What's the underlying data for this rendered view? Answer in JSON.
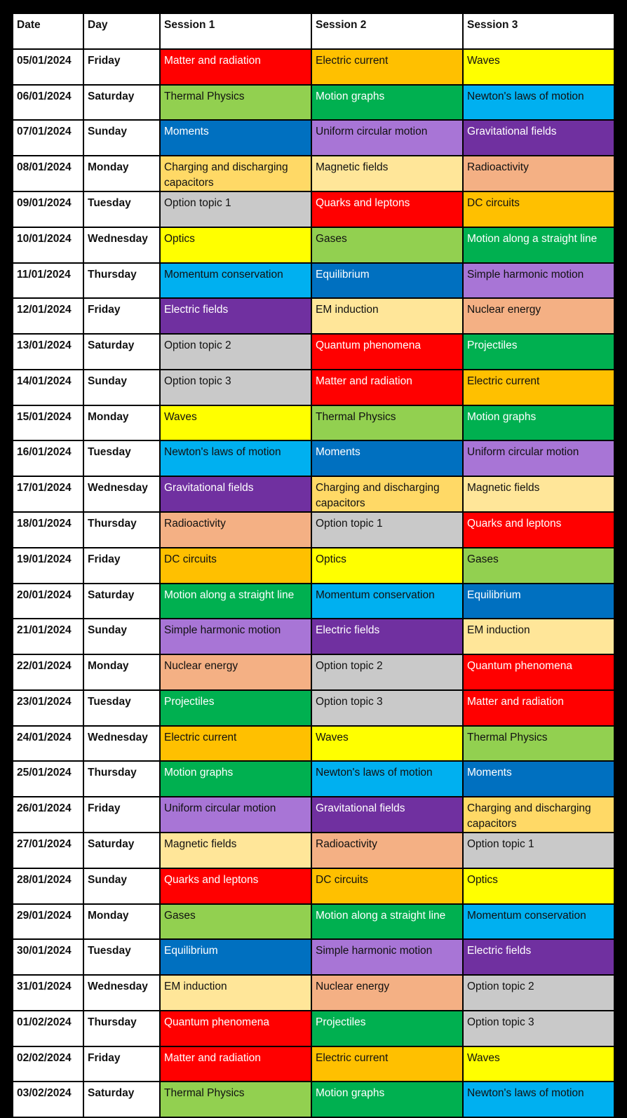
{
  "headers": [
    "Date",
    "Day",
    "Session 1",
    "Session 2",
    "Session 3"
  ],
  "topic_colors": {
    "Matter and radiation": [
      "#FF0000",
      "#ffffff"
    ],
    "Quarks and leptons": [
      "#FF0000",
      "#ffffff"
    ],
    "Quantum phenomena": [
      "#FF0000",
      "#ffffff"
    ],
    "Electric current": [
      "#FFC000",
      "#111111"
    ],
    "DC circuits": [
      "#FFC000",
      "#111111"
    ],
    "Waves": [
      "#FFFF00",
      "#111111"
    ],
    "Optics": [
      "#FFFF00",
      "#111111"
    ],
    "Thermal Physics": [
      "#92D050",
      "#111111"
    ],
    "Gases": [
      "#92D050",
      "#111111"
    ],
    "Motion graphs": [
      "#00B050",
      "#ffffff"
    ],
    "Motion along a straight line": [
      "#00B050",
      "#ffffff"
    ],
    "Projectiles": [
      "#00B050",
      "#ffffff"
    ],
    "Newton's laws of motion": [
      "#00B0F0",
      "#111111"
    ],
    "Momentum conservation": [
      "#00B0F0",
      "#111111"
    ],
    "Moments": [
      "#0070C0",
      "#ffffff"
    ],
    "Equilibrium": [
      "#0070C0",
      "#ffffff"
    ],
    "Uniform circular motion": [
      "#A875D6",
      "#111111"
    ],
    "Simple harmonic motion": [
      "#A875D6",
      "#111111"
    ],
    "Gravitational fields": [
      "#7030A0",
      "#ffffff"
    ],
    "Electric fields": [
      "#7030A0",
      "#ffffff"
    ],
    "Charging and discharging capacitors": [
      "#FFD966",
      "#111111"
    ],
    "Magnetic fields": [
      "#FFE699",
      "#111111"
    ],
    "EM induction": [
      "#FFE699",
      "#111111"
    ],
    "Radioactivity": [
      "#F4B084",
      "#111111"
    ],
    "Nuclear energy": [
      "#F4B084",
      "#111111"
    ],
    "Option topic 1": [
      "#C9C9C9",
      "#111111"
    ],
    "Option topic 2": [
      "#C9C9C9",
      "#111111"
    ],
    "Option topic 3": [
      "#C9C9C9",
      "#111111"
    ]
  },
  "rows": [
    [
      "05/01/2024",
      "Friday",
      "Matter and radiation",
      "Electric current",
      "Waves"
    ],
    [
      "06/01/2024",
      "Saturday",
      "Thermal Physics",
      "Motion graphs",
      "Newton's laws of motion"
    ],
    [
      "07/01/2024",
      "Sunday",
      "Moments",
      "Uniform circular motion",
      "Gravitational fields"
    ],
    [
      "08/01/2024",
      "Monday",
      "Charging and discharging capacitors",
      "Magnetic fields",
      "Radioactivity"
    ],
    [
      "09/01/2024",
      "Tuesday",
      "Option topic 1",
      "Quarks and leptons",
      "DC circuits"
    ],
    [
      "10/01/2024",
      "Wednesday",
      "Optics",
      "Gases",
      "Motion along a straight line"
    ],
    [
      "11/01/2024",
      "Thursday",
      "Momentum conservation",
      "Equilibrium",
      "Simple harmonic motion"
    ],
    [
      "12/01/2024",
      "Friday",
      "Electric fields",
      "EM induction",
      "Nuclear energy"
    ],
    [
      "13/01/2024",
      "Saturday",
      "Option topic 2",
      "Quantum phenomena",
      "Projectiles"
    ],
    [
      "14/01/2024",
      "Sunday",
      "Option topic 3",
      "Matter and radiation",
      "Electric current"
    ],
    [
      "15/01/2024",
      "Monday",
      "Waves",
      "Thermal Physics",
      "Motion graphs"
    ],
    [
      "16/01/2024",
      "Tuesday",
      "Newton's laws of motion",
      "Moments",
      "Uniform circular motion"
    ],
    [
      "17/01/2024",
      "Wednesday",
      "Gravitational fields",
      "Charging and discharging capacitors",
      "Magnetic fields"
    ],
    [
      "18/01/2024",
      "Thursday",
      "Radioactivity",
      "Option topic 1",
      "Quarks and leptons"
    ],
    [
      "19/01/2024",
      "Friday",
      "DC circuits",
      "Optics",
      "Gases"
    ],
    [
      "20/01/2024",
      "Saturday",
      "Motion along a straight line",
      "Momentum conservation",
      "Equilibrium"
    ],
    [
      "21/01/2024",
      "Sunday",
      "Simple harmonic motion",
      "Electric fields",
      "EM induction"
    ],
    [
      "22/01/2024",
      "Monday",
      "Nuclear energy",
      "Option topic 2",
      "Quantum phenomena"
    ],
    [
      "23/01/2024",
      "Tuesday",
      "Projectiles",
      "Option topic 3",
      "Matter and radiation"
    ],
    [
      "24/01/2024",
      "Wednesday",
      "Electric current",
      "Waves",
      "Thermal Physics"
    ],
    [
      "25/01/2024",
      "Thursday",
      "Motion graphs",
      "Newton's laws of motion",
      "Moments"
    ],
    [
      "26/01/2024",
      "Friday",
      "Uniform circular motion",
      "Gravitational fields",
      "Charging and discharging capacitors"
    ],
    [
      "27/01/2024",
      "Saturday",
      "Magnetic fields",
      "Radioactivity",
      "Option topic 1"
    ],
    [
      "28/01/2024",
      "Sunday",
      "Quarks and leptons",
      "DC circuits",
      "Optics"
    ],
    [
      "29/01/2024",
      "Monday",
      "Gases",
      "Motion along a straight line",
      "Momentum conservation"
    ],
    [
      "30/01/2024",
      "Tuesday",
      "Equilibrium",
      "Simple harmonic motion",
      "Electric fields"
    ],
    [
      "31/01/2024",
      "Wednesday",
      "EM induction",
      "Nuclear energy",
      "Option topic 2"
    ],
    [
      "01/02/2024",
      "Thursday",
      "Quantum phenomena",
      "Projectiles",
      "Option topic 3"
    ],
    [
      "02/02/2024",
      "Friday",
      "Matter and radiation",
      "Electric current",
      "Waves"
    ],
    [
      "03/02/2024",
      "Saturday",
      "Thermal Physics",
      "Motion graphs",
      "Newton's laws of motion"
    ]
  ]
}
